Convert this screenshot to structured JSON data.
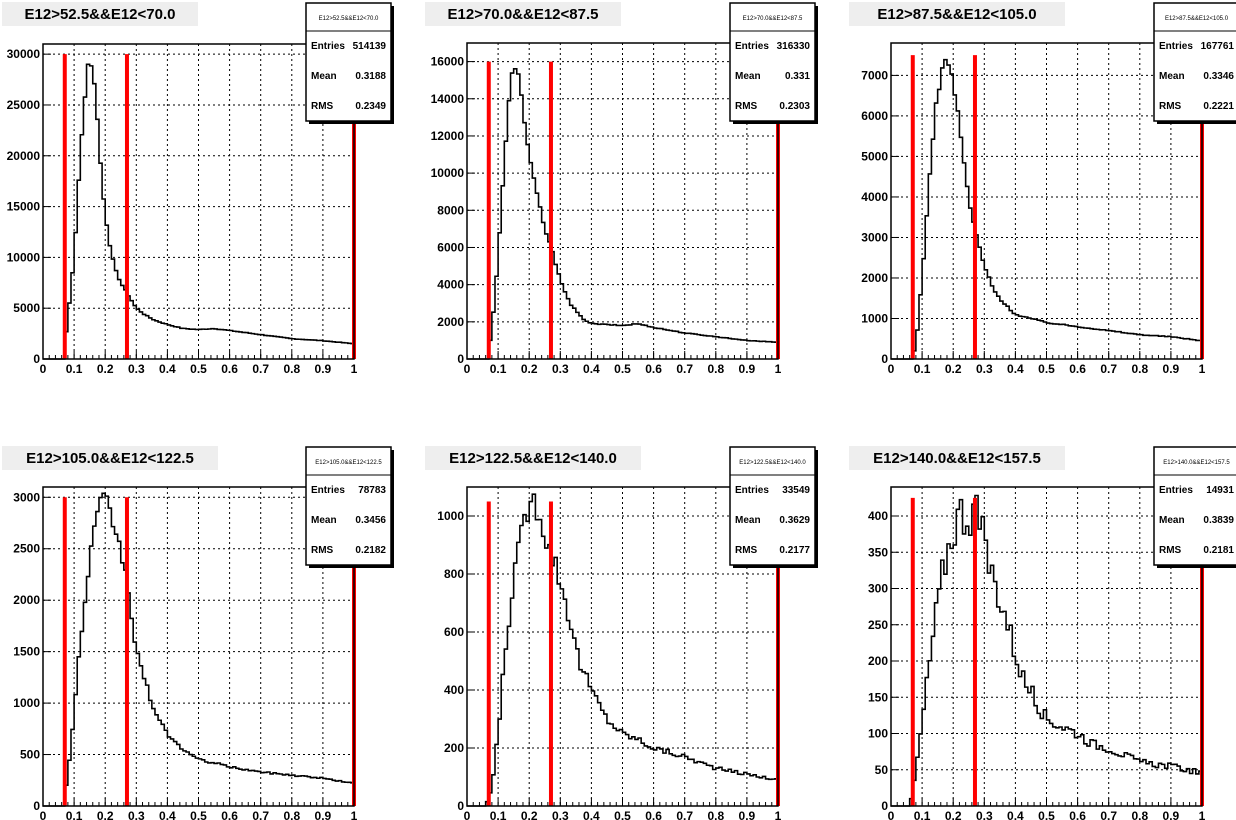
{
  "chart_data": [
    {
      "type": "histogram",
      "title": "E12>52.5&&E12<70.0",
      "stats": {
        "name": "E12>52.5&&E12<70.0",
        "entries": "514139",
        "mean": "0.3188",
        "rms": "0.2349"
      },
      "xlim": [
        0,
        1
      ],
      "ylim": [
        0,
        31000
      ],
      "xticks": [
        "0",
        "0.1",
        "0.2",
        "0.3",
        "0.4",
        "0.5",
        "0.6",
        "0.7",
        "0.8",
        "0.9",
        "1"
      ],
      "yticks": [
        0,
        5000,
        10000,
        15000,
        20000,
        25000,
        30000
      ],
      "cut_lines_x": [
        0.07,
        0.27,
        1.0
      ],
      "cut_line_top": 30000,
      "shape": [
        [
          0.065,
          0
        ],
        [
          0.08,
          4000
        ],
        [
          0.1,
          10000
        ],
        [
          0.12,
          20000
        ],
        [
          0.14,
          28000
        ],
        [
          0.15,
          30000
        ],
        [
          0.17,
          26000
        ],
        [
          0.19,
          17000
        ],
        [
          0.21,
          12000
        ],
        [
          0.23,
          9000
        ],
        [
          0.25,
          7500
        ],
        [
          0.28,
          6000
        ],
        [
          0.3,
          5000
        ],
        [
          0.33,
          4300
        ],
        [
          0.36,
          3800
        ],
        [
          0.4,
          3400
        ],
        [
          0.45,
          3000
        ],
        [
          0.5,
          2900
        ],
        [
          0.55,
          3000
        ],
        [
          0.6,
          2800
        ],
        [
          0.7,
          2400
        ],
        [
          0.8,
          2000
        ],
        [
          0.9,
          1800
        ],
        [
          1.0,
          1500
        ]
      ]
    },
    {
      "type": "histogram",
      "title": "E12>70.0&&E12<87.5",
      "stats": {
        "name": "E12>70.0&&E12<87.5",
        "entries": "316330",
        "mean": "0.331",
        "rms": "0.2303"
      },
      "xlim": [
        0,
        1
      ],
      "ylim": [
        0,
        17000
      ],
      "xticks": [
        "0",
        "0.1",
        "0.2",
        "0.3",
        "0.4",
        "0.5",
        "0.6",
        "0.7",
        "0.8",
        "0.9",
        "1"
      ],
      "yticks": [
        0,
        2000,
        4000,
        6000,
        8000,
        10000,
        12000,
        14000,
        16000
      ],
      "cut_lines_x": [
        0.07,
        0.27,
        1.0
      ],
      "cut_line_top": 16000,
      "shape": [
        [
          0.065,
          0
        ],
        [
          0.08,
          1500
        ],
        [
          0.1,
          5500
        ],
        [
          0.12,
          10500
        ],
        [
          0.14,
          15000
        ],
        [
          0.15,
          16000
        ],
        [
          0.17,
          15000
        ],
        [
          0.19,
          12000
        ],
        [
          0.21,
          10000
        ],
        [
          0.23,
          8500
        ],
        [
          0.25,
          7000
        ],
        [
          0.27,
          6000
        ],
        [
          0.3,
          4300
        ],
        [
          0.33,
          3000
        ],
        [
          0.37,
          2200
        ],
        [
          0.4,
          1900
        ],
        [
          0.5,
          1800
        ],
        [
          0.55,
          1900
        ],
        [
          0.6,
          1700
        ],
        [
          0.7,
          1400
        ],
        [
          0.8,
          1200
        ],
        [
          0.9,
          1000
        ],
        [
          1.0,
          900
        ]
      ]
    },
    {
      "type": "histogram",
      "title": "E12>87.5&&E12<105.0",
      "stats": {
        "name": "E12>87.5&&E12<105.0",
        "entries": "167761",
        "mean": "0.3346",
        "rms": "0.2221"
      },
      "xlim": [
        0,
        1
      ],
      "ylim": [
        0,
        7800
      ],
      "xticks": [
        "0",
        "0.1",
        "0.2",
        "0.3",
        "0.4",
        "0.5",
        "0.6",
        "0.7",
        "0.8",
        "0.9",
        "1"
      ],
      "yticks": [
        0,
        1000,
        2000,
        3000,
        4000,
        5000,
        6000,
        7000
      ],
      "cut_lines_x": [
        0.07,
        0.27,
        1.0
      ],
      "cut_line_top": 7500,
      "shape": [
        [
          0.065,
          0
        ],
        [
          0.08,
          300
        ],
        [
          0.1,
          2000
        ],
        [
          0.12,
          4000
        ],
        [
          0.14,
          6000
        ],
        [
          0.16,
          7000
        ],
        [
          0.18,
          7500
        ],
        [
          0.2,
          6800
        ],
        [
          0.22,
          5800
        ],
        [
          0.24,
          4500
        ],
        [
          0.26,
          3500
        ],
        [
          0.28,
          2900
        ],
        [
          0.3,
          2300
        ],
        [
          0.33,
          1700
        ],
        [
          0.36,
          1400
        ],
        [
          0.4,
          1100
        ],
        [
          0.45,
          1000
        ],
        [
          0.5,
          900
        ],
        [
          0.55,
          850
        ],
        [
          0.6,
          800
        ],
        [
          0.7,
          700
        ],
        [
          0.8,
          600
        ],
        [
          0.9,
          550
        ],
        [
          1.0,
          450
        ]
      ]
    },
    {
      "type": "histogram",
      "title": "E12>105.0&&E12<122.5",
      "stats": {
        "name": "E12>105.0&&E12<122.5",
        "entries": "78783",
        "mean": "0.3456",
        "rms": "0.2182"
      },
      "xlim": [
        0,
        1
      ],
      "ylim": [
        0,
        3100
      ],
      "xticks": [
        "0",
        "0.1",
        "0.2",
        "0.3",
        "0.4",
        "0.5",
        "0.6",
        "0.7",
        "0.8",
        "0.9",
        "1"
      ],
      "yticks": [
        0,
        500,
        1000,
        1500,
        2000,
        2500,
        3000
      ],
      "cut_lines_x": [
        0.07,
        0.27,
        1.0
      ],
      "cut_line_top": 3000,
      "shape": [
        [
          0.065,
          0
        ],
        [
          0.08,
          300
        ],
        [
          0.1,
          900
        ],
        [
          0.12,
          1600
        ],
        [
          0.14,
          2100
        ],
        [
          0.16,
          2600
        ],
        [
          0.18,
          2900
        ],
        [
          0.2,
          3000
        ],
        [
          0.22,
          2800
        ],
        [
          0.24,
          2600
        ],
        [
          0.27,
          2200
        ],
        [
          0.3,
          1500
        ],
        [
          0.33,
          1200
        ],
        [
          0.36,
          900
        ],
        [
          0.4,
          700
        ],
        [
          0.45,
          550
        ],
        [
          0.5,
          450
        ],
        [
          0.55,
          420
        ],
        [
          0.6,
          380
        ],
        [
          0.7,
          330
        ],
        [
          0.8,
          300
        ],
        [
          0.9,
          270
        ],
        [
          1.0,
          220
        ]
      ]
    },
    {
      "type": "histogram",
      "title": "E12>122.5&&E12<140.0",
      "stats": {
        "name": "E12>122.5&&E12<140.0",
        "entries": "33549",
        "mean": "0.3629",
        "rms": "0.2177"
      },
      "xlim": [
        0,
        1
      ],
      "ylim": [
        0,
        1100
      ],
      "xticks": [
        "0",
        "0.1",
        "0.2",
        "0.3",
        "0.4",
        "0.5",
        "0.6",
        "0.7",
        "0.8",
        "0.9",
        "1"
      ],
      "yticks": [
        0,
        200,
        400,
        600,
        800,
        1000
      ],
      "cut_lines_x": [
        0.07,
        0.27,
        1.0
      ],
      "cut_line_top": 1050,
      "shape": [
        [
          0.06,
          0
        ],
        [
          0.08,
          60
        ],
        [
          0.1,
          250
        ],
        [
          0.12,
          500
        ],
        [
          0.14,
          700
        ],
        [
          0.16,
          850
        ],
        [
          0.18,
          950
        ],
        [
          0.2,
          1050
        ],
        [
          0.22,
          1050
        ],
        [
          0.24,
          1000
        ],
        [
          0.26,
          900
        ],
        [
          0.28,
          850
        ],
        [
          0.3,
          780
        ],
        [
          0.33,
          650
        ],
        [
          0.36,
          500
        ],
        [
          0.4,
          400
        ],
        [
          0.45,
          300
        ],
        [
          0.5,
          250
        ],
        [
          0.55,
          230
        ],
        [
          0.6,
          200
        ],
        [
          0.7,
          170
        ],
        [
          0.8,
          130
        ],
        [
          0.9,
          110
        ],
        [
          1.0,
          90
        ]
      ]
    },
    {
      "type": "histogram",
      "title": "E12>140.0&&E12<157.5",
      "stats": {
        "name": "E12>140.0&&E12<157.5",
        "entries": "14931",
        "mean": "0.3839",
        "rms": "0.2181"
      },
      "xlim": [
        0,
        1
      ],
      "ylim": [
        0,
        440
      ],
      "xticks": [
        "0",
        "0.1",
        "0.2",
        "0.3",
        "0.4",
        "0.5",
        "0.6",
        "0.7",
        "0.8",
        "0.9",
        "1"
      ],
      "yticks": [
        0,
        50,
        100,
        150,
        200,
        250,
        300,
        350,
        400
      ],
      "cut_lines_x": [
        0.07,
        0.27,
        1.0
      ],
      "cut_line_top": 425,
      "shape": [
        [
          0.06,
          0
        ],
        [
          0.07,
          20
        ],
        [
          0.09,
          80
        ],
        [
          0.11,
          150
        ],
        [
          0.14,
          250
        ],
        [
          0.17,
          330
        ],
        [
          0.2,
          380
        ],
        [
          0.22,
          405
        ],
        [
          0.25,
          400
        ],
        [
          0.27,
          415
        ],
        [
          0.29,
          380
        ],
        [
          0.31,
          340
        ],
        [
          0.34,
          300
        ],
        [
          0.37,
          260
        ],
        [
          0.4,
          210
        ],
        [
          0.43,
          170
        ],
        [
          0.46,
          150
        ],
        [
          0.5,
          120
        ],
        [
          0.55,
          110
        ],
        [
          0.6,
          100
        ],
        [
          0.65,
          85
        ],
        [
          0.7,
          80
        ],
        [
          0.8,
          60
        ],
        [
          0.9,
          55
        ],
        [
          1.0,
          45
        ]
      ]
    }
  ],
  "colors": {
    "cut_line": "#ff0000",
    "hist": "#000000",
    "title_bg": "#eeeeee",
    "stats_bg": "#ffffff"
  }
}
